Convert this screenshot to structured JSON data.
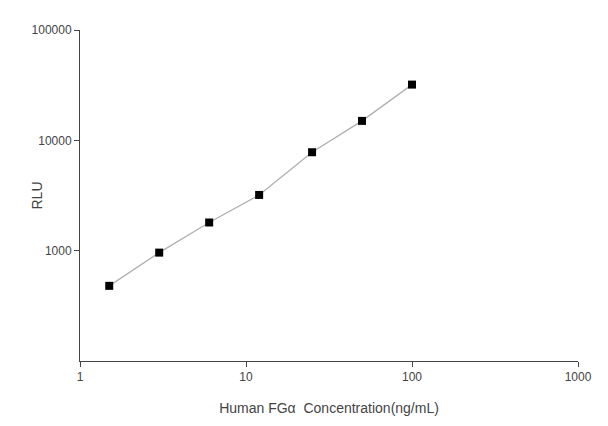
{
  "chart_data": {
    "type": "line",
    "xlabel": "Human FGα  Concentration(ng/mL)",
    "ylabel": "RLU",
    "x": [
      1.5,
      3.0,
      6.0,
      12.0,
      25.0,
      50.0,
      100.0
    ],
    "series": [
      {
        "type": "line",
        "color": "#b0b0b0",
        "line_style": "solid",
        "values": [
          480,
          960,
          1800,
          3200,
          7800,
          15000,
          32000
        ]
      },
      {
        "type": "scatter",
        "color": "#000000",
        "marker": "square",
        "values": [
          480,
          960,
          1800,
          3200,
          7800,
          15000,
          32000
        ]
      }
    ],
    "xlim": [
      1,
      1000
    ],
    "ylim": [
      100,
      100000
    ],
    "xticks": [
      1,
      10,
      100,
      1000
    ],
    "yticks": [
      1000,
      10000,
      100000
    ],
    "log": true,
    "grid": false
  }
}
